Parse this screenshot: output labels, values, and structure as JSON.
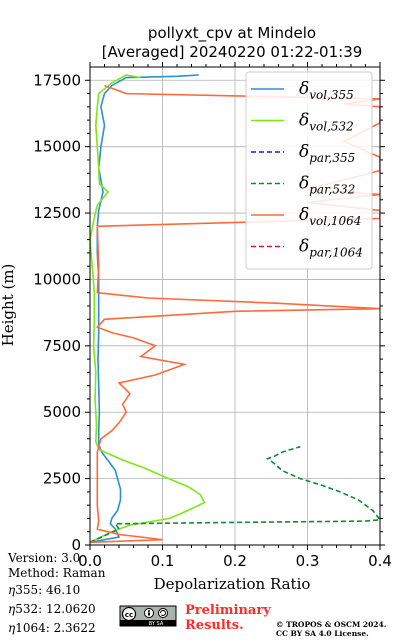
{
  "chart_data": {
    "type": "line",
    "title": [
      "pollyxt_cpv at Mindelo",
      "[Averaged] 20240220 01:22-01:39"
    ],
    "xlabel": "Depolarization Ratio",
    "ylabel": "Height (m)",
    "xlim": [
      0,
      0.4
    ],
    "ylim": [
      0,
      18000
    ],
    "xticks": [
      "0.0",
      "0.1",
      "0.2",
      "0.3",
      "0.4"
    ],
    "yticks": [
      "0",
      "2500",
      "5000",
      "7500",
      "10000",
      "12500",
      "15000",
      "17500"
    ],
    "grid": true,
    "legend_position": "top-right",
    "series": [
      {
        "name": "vol,355",
        "color": "#2b8fd9",
        "dash": "solid",
        "points": [
          [
            0.0,
            100
          ],
          [
            0.04,
            300
          ],
          [
            0.035,
            600
          ],
          [
            0.028,
            800
          ],
          [
            0.03,
            1000
          ],
          [
            0.038,
            1300
          ],
          [
            0.042,
            1700
          ],
          [
            0.042,
            2100
          ],
          [
            0.038,
            2500
          ],
          [
            0.035,
            2800
          ],
          [
            0.026,
            3150
          ],
          [
            0.016,
            3500
          ],
          [
            0.012,
            3800
          ],
          [
            0.012,
            4300
          ],
          [
            0.013,
            5000
          ],
          [
            0.012,
            6000
          ],
          [
            0.011,
            7000
          ],
          [
            0.012,
            8000
          ],
          [
            0.012,
            9000
          ],
          [
            0.012,
            10000
          ],
          [
            0.01,
            11000
          ],
          [
            0.01,
            12000
          ],
          [
            0.012,
            12600
          ],
          [
            0.018,
            13300
          ],
          [
            0.012,
            14200
          ],
          [
            0.015,
            15000
          ],
          [
            0.02,
            15800
          ],
          [
            0.015,
            16500
          ],
          [
            0.02,
            17000
          ],
          [
            0.03,
            17300
          ],
          [
            0.05,
            17600
          ],
          [
            0.12,
            17650
          ],
          [
            0.15,
            17700
          ]
        ]
      },
      {
        "name": "vol,532",
        "color": "#7ee619",
        "dash": "solid",
        "points": [
          [
            0.0,
            100
          ],
          [
            0.03,
            500
          ],
          [
            0.055,
            750
          ],
          [
            0.11,
            1000
          ],
          [
            0.135,
            1300
          ],
          [
            0.158,
            1600
          ],
          [
            0.152,
            1900
          ],
          [
            0.135,
            2200
          ],
          [
            0.1,
            2600
          ],
          [
            0.075,
            2900
          ],
          [
            0.045,
            3200
          ],
          [
            0.012,
            3600
          ],
          [
            0.008,
            3900
          ],
          [
            0.009,
            4500
          ],
          [
            0.007,
            5500
          ],
          [
            0.008,
            6500
          ],
          [
            0.005,
            7500
          ],
          [
            0.006,
            8500
          ],
          [
            0.006,
            9500
          ],
          [
            0.003,
            10500
          ],
          [
            0.0,
            11500
          ],
          [
            0.005,
            12200
          ],
          [
            0.01,
            12800
          ],
          [
            0.025,
            13300
          ],
          [
            0.013,
            13600
          ],
          [
            0.012,
            14200
          ],
          [
            0.01,
            15000
          ],
          [
            0.008,
            15800
          ],
          [
            0.01,
            16500
          ],
          [
            0.012,
            17000
          ],
          [
            0.03,
            17400
          ],
          [
            0.05,
            17700
          ],
          [
            0.07,
            17600
          ]
        ]
      },
      {
        "name": "par,355",
        "color": "#1a1ad6",
        "dash": "dashed",
        "points": []
      },
      {
        "name": "par,532",
        "color": "#118833",
        "dash": "dashed",
        "points": [
          [
            0.0,
            100
          ],
          [
            0.04,
            600
          ],
          [
            0.035,
            800
          ],
          [
            0.2,
            850
          ],
          [
            0.38,
            900
          ],
          [
            0.4,
            950
          ],
          [
            0.39,
            1300
          ],
          [
            0.37,
            1700
          ],
          [
            0.345,
            2000
          ],
          [
            0.32,
            2250
          ],
          [
            0.29,
            2500
          ],
          [
            0.265,
            2800
          ],
          [
            0.255,
            3050
          ],
          [
            0.245,
            3250
          ],
          [
            0.255,
            3350
          ],
          [
            0.265,
            3500
          ],
          [
            0.29,
            3700
          ]
        ]
      },
      {
        "name": "vol,1064",
        "color": "#ff6a3d",
        "dash": "solid",
        "points": [
          [
            0.0,
            100
          ],
          [
            0.1,
            200
          ],
          [
            0.04,
            400
          ],
          [
            0.01,
            600
          ],
          [
            0.012,
            900
          ],
          [
            0.01,
            1500
          ],
          [
            0.01,
            2500
          ],
          [
            0.01,
            3500
          ],
          [
            0.015,
            4000
          ],
          [
            0.03,
            4300
          ],
          [
            0.04,
            4600
          ],
          [
            0.05,
            5000
          ],
          [
            0.045,
            5300
          ],
          [
            0.055,
            5700
          ],
          [
            0.04,
            6100
          ],
          [
            0.09,
            6400
          ],
          [
            0.13,
            6800
          ],
          [
            0.07,
            7100
          ],
          [
            0.09,
            7500
          ],
          [
            0.06,
            7800
          ],
          [
            0.03,
            8000
          ],
          [
            0.01,
            8200
          ],
          [
            0.02,
            8500
          ],
          [
            0.2,
            8800
          ],
          [
            0.4,
            8900
          ],
          [
            0.26,
            9100
          ],
          [
            0.08,
            9300
          ],
          [
            0.01,
            9500
          ],
          [
            0.012,
            10500
          ],
          [
            0.01,
            12000
          ],
          [
            0.4,
            12300
          ],
          [
            0.4,
            12600
          ],
          [
            0.3,
            12900
          ],
          [
            0.4,
            13200
          ],
          [
            0.3,
            13400
          ],
          [
            0.4,
            14100
          ],
          [
            0.4,
            14600
          ],
          [
            0.35,
            15200
          ],
          [
            0.4,
            15900
          ],
          [
            0.4,
            16500
          ],
          [
            0.35,
            16600
          ],
          [
            0.4,
            16800
          ],
          [
            0.05,
            17000
          ],
          [
            0.02,
            17300
          ]
        ]
      },
      {
        "name": "par,1064",
        "color": "#d62020",
        "dash": "dashed",
        "points": []
      }
    ]
  },
  "footer": {
    "version": "Version: 3.0",
    "method": "Method: Raman",
    "eta355": "355:  46.10",
    "eta532": "532: 12.0620",
    "eta1064": "1064: 2.3622",
    "cc_badge": "cc",
    "cc_sub": "BY   SA",
    "preliminary_1": "Preliminary",
    "preliminary_2": "Results.",
    "credit_1": "© TROPOS & OSCM 2024.",
    "credit_2": "CC BY SA 4.0 License."
  }
}
